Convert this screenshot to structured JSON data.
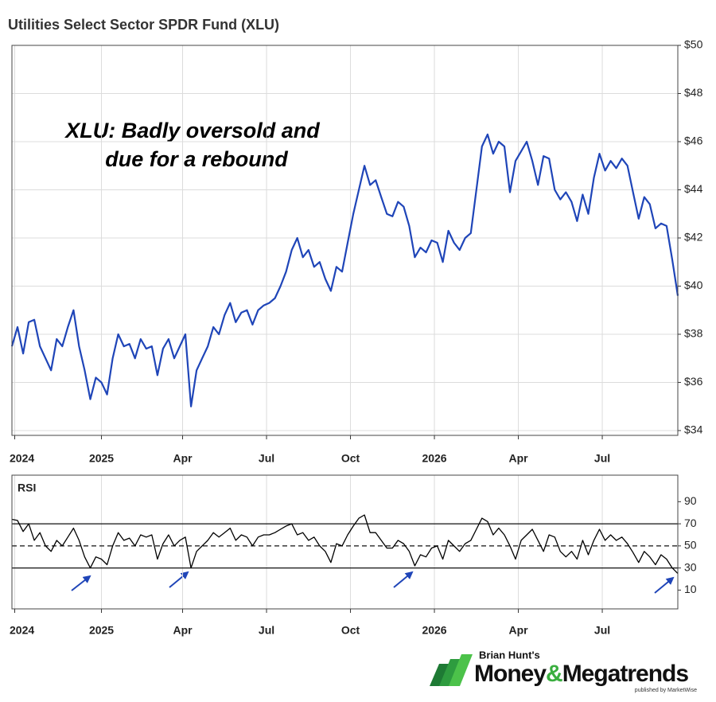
{
  "chart_data": [
    {
      "type": "line",
      "title": "Utilities Select Sector SPDR Fund (XLU)",
      "annotation": [
        "XLU: Badly oversold and",
        "due for a rebound"
      ],
      "series": [
        {
          "name": "XLU",
          "color": "#1f45b8",
          "values": [
            37.5,
            38.3,
            37.2,
            38.5,
            38.6,
            37.5,
            37.0,
            36.5,
            37.8,
            37.5,
            38.3,
            39.0,
            37.5,
            36.5,
            35.3,
            36.2,
            36.0,
            35.5,
            37.0,
            38.0,
            37.5,
            37.6,
            37.0,
            37.8,
            37.4,
            37.5,
            36.3,
            37.4,
            37.8,
            37.0,
            37.5,
            38.0,
            35.0,
            36.5,
            37.0,
            37.5,
            38.3,
            38.0,
            38.8,
            39.3,
            38.5,
            38.9,
            39.0,
            38.4,
            39.0,
            39.2,
            39.3,
            39.5,
            40.0,
            40.6,
            41.5,
            42.0,
            41.2,
            41.5,
            40.8,
            41.0,
            40.3,
            39.8,
            40.8,
            40.6,
            41.8,
            43.0,
            44.0,
            45.0,
            44.2,
            44.4,
            43.7,
            43.0,
            42.9,
            43.5,
            43.3,
            42.5,
            41.2,
            41.6,
            41.4,
            41.9,
            41.8,
            41.0,
            42.3,
            41.8,
            41.5,
            42.0,
            42.2,
            44.0,
            45.8,
            46.3,
            45.5,
            46.0,
            45.8,
            43.9,
            45.2,
            45.6,
            46.0,
            45.2,
            44.2,
            45.4,
            45.3,
            44.0,
            43.6,
            43.9,
            43.5,
            42.7,
            43.8,
            43.0,
            44.5,
            45.5,
            44.8,
            45.2,
            44.9,
            45.3,
            45.0,
            43.9,
            42.8,
            43.7,
            43.4,
            42.4,
            42.6,
            42.5,
            41.1,
            39.6
          ]
        }
      ],
      "xlim": [
        0,
        119
      ],
      "xticks": [
        {
          "value": 0.5,
          "label": "2024"
        },
        {
          "value": 16,
          "label": "2025"
        },
        {
          "value": 30.5,
          "label": "Apr"
        },
        {
          "value": 45.5,
          "label": "Jul"
        },
        {
          "value": 60.5,
          "label": "Oct"
        },
        {
          "value": 75.5,
          "label": "2026"
        },
        {
          "value": 90.5,
          "label": "Apr"
        },
        {
          "value": 105.5,
          "label": "Jul"
        }
      ],
      "ylim": [
        33.8,
        50
      ],
      "yticks": [
        {
          "value": 34,
          "label": "$34"
        },
        {
          "value": 36,
          "label": "$36"
        },
        {
          "value": 38,
          "label": "$38"
        },
        {
          "value": 40,
          "label": "$40"
        },
        {
          "value": 42,
          "label": "$42"
        },
        {
          "value": 44,
          "label": "$44"
        },
        {
          "value": 46,
          "label": "$46"
        },
        {
          "value": 48,
          "label": "$48"
        },
        {
          "value": 50,
          "label": "$50"
        }
      ],
      "grid": true
    },
    {
      "type": "line",
      "title": "RSI",
      "series": [
        {
          "name": "RSI",
          "color": "#000000",
          "values": [
            74,
            73,
            63,
            70,
            55,
            62,
            50,
            45,
            55,
            50,
            58,
            66,
            55,
            40,
            30,
            40,
            38,
            33,
            50,
            62,
            55,
            57,
            50,
            60,
            58,
            60,
            38,
            52,
            60,
            50,
            55,
            58,
            30,
            45,
            50,
            55,
            62,
            58,
            62,
            66,
            55,
            60,
            58,
            50,
            58,
            60,
            60,
            62,
            65,
            68,
            70,
            60,
            62,
            55,
            58,
            50,
            45,
            35,
            52,
            50,
            60,
            68,
            75,
            78,
            62,
            62,
            55,
            48,
            48,
            55,
            52,
            45,
            32,
            42,
            40,
            48,
            50,
            38,
            55,
            50,
            45,
            52,
            55,
            65,
            75,
            72,
            60,
            66,
            60,
            50,
            38,
            55,
            60,
            65,
            55,
            45,
            60,
            58,
            45,
            40,
            45,
            38,
            55,
            42,
            55,
            65,
            55,
            60,
            55,
            58,
            52,
            44,
            35,
            45,
            40,
            33,
            42,
            38,
            30,
            25
          ]
        }
      ],
      "xlim": [
        0,
        119
      ],
      "xticks": [
        {
          "value": 0.5,
          "label": "2024"
        },
        {
          "value": 16,
          "label": "2025"
        },
        {
          "value": 30.5,
          "label": "Apr"
        },
        {
          "value": 45.5,
          "label": "Jul"
        },
        {
          "value": 60.5,
          "label": "Oct"
        },
        {
          "value": 75.5,
          "label": "2026"
        },
        {
          "value": 90.5,
          "label": "Apr"
        },
        {
          "value": 105.5,
          "label": "Jul"
        }
      ],
      "ylim": [
        -7,
        114
      ],
      "yticks": [
        10,
        30,
        50,
        70,
        90
      ],
      "hlines": [
        {
          "value": 70,
          "style": "solid"
        },
        {
          "value": 50,
          "style": "dashed"
        },
        {
          "value": 30,
          "style": "solid"
        }
      ],
      "grid": true
    }
  ],
  "logo": {
    "byline": "Brian Hunt's",
    "name_left": "Money",
    "name_amp": "&",
    "name_right": "Megatrends",
    "publisher": "published by MarketWise"
  }
}
